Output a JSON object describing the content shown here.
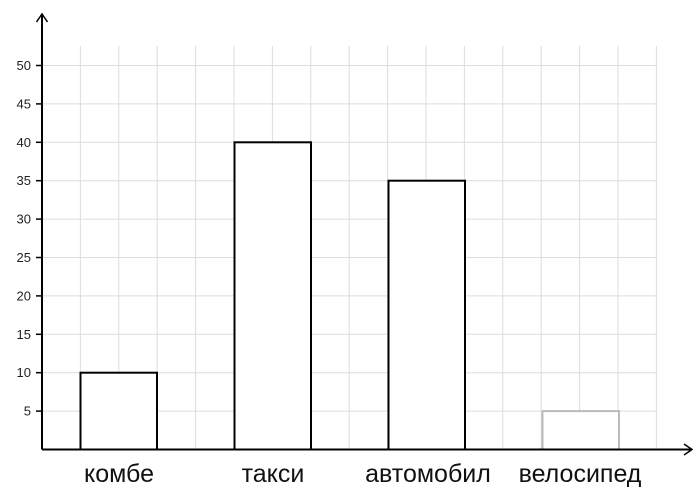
{
  "chart_data": {
    "type": "bar",
    "categories": [
      "комбе",
      "такси",
      "автомобил",
      "велосипед"
    ],
    "values": [
      10,
      40,
      35,
      5
    ],
    "bar_colors": [
      "#000000",
      "#000000",
      "#000000",
      "#bbbbbb"
    ],
    "y_ticks": [
      "5",
      "10",
      "15",
      "20",
      "25",
      "30",
      "35",
      "40",
      "45",
      "50"
    ],
    "ylim": [
      0,
      50
    ],
    "grid": true,
    "title": "",
    "xlabel": "",
    "ylabel": ""
  }
}
